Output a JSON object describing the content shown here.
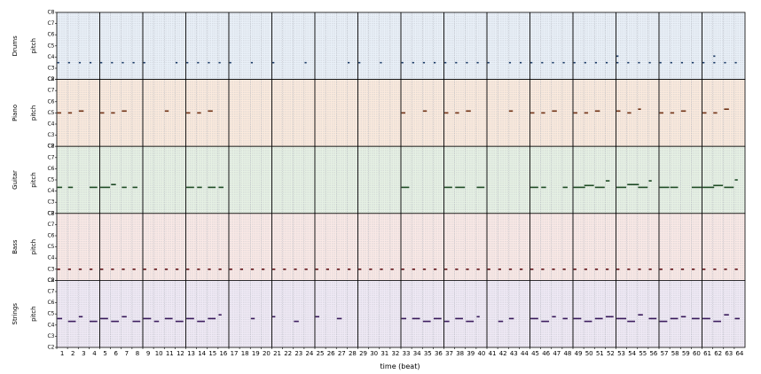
{
  "chart_data": {
    "type": "heatmap",
    "subtype": "multitrack-pianoroll",
    "xlabel": "time (beat)",
    "ylabel": "pitch",
    "x_ticks": [
      "1",
      "2",
      "3",
      "4",
      "5",
      "6",
      "7",
      "8",
      "9",
      "10",
      "11",
      "12",
      "13",
      "14",
      "15",
      "16",
      "17",
      "18",
      "19",
      "20",
      "21",
      "22",
      "23",
      "24",
      "25",
      "26",
      "27",
      "28",
      "29",
      "30",
      "31",
      "32",
      "33",
      "34",
      "35",
      "36",
      "37",
      "38",
      "39",
      "40",
      "41",
      "42",
      "43",
      "44",
      "45",
      "46",
      "47",
      "48",
      "49",
      "50",
      "51",
      "52",
      "53",
      "54",
      "55",
      "56",
      "57",
      "58",
      "59",
      "60",
      "61",
      "62",
      "63",
      "64"
    ],
    "y_ticks": [
      "C2",
      "C3",
      "C4",
      "C5",
      "C6",
      "C7",
      "C8"
    ],
    "y_range_octaves": [
      2,
      8
    ],
    "x_range_beats": [
      1,
      65
    ],
    "beats_per_bar": 4,
    "grid": true,
    "tracks": [
      {
        "name": "Drums",
        "bg": "#e9f0f8",
        "note_color": "#1a3a66",
        "notes": [
          [
            1,
            42,
            0.2
          ],
          [
            2,
            42,
            0.2
          ],
          [
            3,
            42,
            0.2
          ],
          [
            4,
            42,
            0.2
          ],
          [
            5,
            42,
            0.2
          ],
          [
            6,
            42,
            0.2
          ],
          [
            7,
            42,
            0.2
          ],
          [
            8,
            42,
            0.2
          ],
          [
            9,
            42,
            0.2
          ],
          [
            12,
            42,
            0.2
          ],
          [
            13,
            42,
            0.2
          ],
          [
            14,
            42,
            0.2
          ],
          [
            15,
            42,
            0.2
          ],
          [
            16,
            42,
            0.2
          ],
          [
            17,
            42,
            0.2
          ],
          [
            19,
            42,
            0.2
          ],
          [
            21,
            42,
            0.2
          ],
          [
            24,
            42,
            0.2
          ],
          [
            28,
            42,
            0.2
          ],
          [
            29,
            42,
            0.2
          ],
          [
            31,
            42,
            0.2
          ],
          [
            33,
            42,
            0.2
          ],
          [
            34,
            42,
            0.2
          ],
          [
            35,
            42,
            0.2
          ],
          [
            36,
            42,
            0.2
          ],
          [
            37,
            42,
            0.2
          ],
          [
            38,
            42,
            0.2
          ],
          [
            39,
            42,
            0.2
          ],
          [
            40,
            42,
            0.2
          ],
          [
            41,
            42,
            0.2
          ],
          [
            43,
            42,
            0.2
          ],
          [
            44,
            42,
            0.2
          ],
          [
            45,
            42,
            0.2
          ],
          [
            46,
            42,
            0.2
          ],
          [
            47,
            42,
            0.2
          ],
          [
            48,
            42,
            0.2
          ],
          [
            49,
            42,
            0.2
          ],
          [
            50,
            42,
            0.2
          ],
          [
            51,
            42,
            0.2
          ],
          [
            52,
            42,
            0.2
          ],
          [
            53,
            42,
            0.2
          ],
          [
            54,
            42,
            0.2
          ],
          [
            55,
            42,
            0.2
          ],
          [
            56,
            42,
            0.2
          ],
          [
            57,
            42,
            0.2
          ],
          [
            58,
            42,
            0.2
          ],
          [
            59,
            42,
            0.2
          ],
          [
            60,
            42,
            0.2
          ],
          [
            61,
            42,
            0.2
          ],
          [
            62,
            42,
            0.2
          ],
          [
            63,
            42,
            0.2
          ],
          [
            64,
            42,
            0.2
          ],
          [
            53,
            49,
            0.2
          ],
          [
            62,
            49,
            0.2
          ]
        ]
      },
      {
        "name": "Piano",
        "bg": "#fbeadd",
        "note_color": "#6b2e12",
        "notes": [
          [
            1,
            60,
            0.4
          ],
          [
            2,
            60,
            0.4
          ],
          [
            3,
            62,
            0.5
          ],
          [
            5,
            60,
            0.4
          ],
          [
            6,
            60,
            0.4
          ],
          [
            7,
            62,
            0.5
          ],
          [
            11,
            62,
            0.4
          ],
          [
            13,
            60,
            0.4
          ],
          [
            14,
            60,
            0.4
          ],
          [
            15,
            62,
            0.5
          ],
          [
            33,
            60,
            0.4
          ],
          [
            35,
            62,
            0.4
          ],
          [
            37,
            60,
            0.4
          ],
          [
            38,
            60,
            0.4
          ],
          [
            39,
            62,
            0.5
          ],
          [
            43,
            62,
            0.4
          ],
          [
            45,
            60,
            0.4
          ],
          [
            46,
            60,
            0.4
          ],
          [
            47,
            62,
            0.5
          ],
          [
            49,
            60,
            0.4
          ],
          [
            50,
            60,
            0.4
          ],
          [
            51,
            62,
            0.5
          ],
          [
            53,
            62,
            0.4
          ],
          [
            54,
            60,
            0.4
          ],
          [
            55,
            64,
            0.3
          ],
          [
            57,
            60,
            0.4
          ],
          [
            58,
            60,
            0.4
          ],
          [
            59,
            62,
            0.5
          ],
          [
            61,
            60,
            0.4
          ],
          [
            62,
            60,
            0.4
          ],
          [
            63,
            64,
            0.5
          ]
        ]
      },
      {
        "name": "Guitar",
        "bg": "#e6f1e4",
        "note_color": "#1d4a24",
        "notes": [
          [
            1,
            52,
            0.5
          ],
          [
            2,
            52,
            0.5
          ],
          [
            4,
            52,
            0.8
          ],
          [
            5,
            52,
            1.0
          ],
          [
            6,
            55,
            0.5
          ],
          [
            7,
            52,
            0.5
          ],
          [
            8,
            52,
            0.5
          ],
          [
            13,
            52,
            0.8
          ],
          [
            14,
            52,
            0.5
          ],
          [
            15,
            52,
            0.8
          ],
          [
            16,
            52,
            0.5
          ],
          [
            33,
            52,
            0.8
          ],
          [
            37,
            52,
            0.8
          ],
          [
            38,
            52,
            1.0
          ],
          [
            40,
            52,
            0.8
          ],
          [
            45,
            52,
            0.8
          ],
          [
            46,
            52,
            0.5
          ],
          [
            48,
            52,
            0.5
          ],
          [
            49,
            52,
            1.2
          ],
          [
            50,
            54,
            1.0
          ],
          [
            51,
            52,
            1.0
          ],
          [
            52,
            59,
            0.4
          ],
          [
            53,
            52,
            1.0
          ],
          [
            54,
            55,
            1.2
          ],
          [
            55,
            52,
            1.0
          ],
          [
            56,
            59,
            0.3
          ],
          [
            57,
            52,
            1.0
          ],
          [
            58,
            52,
            0.8
          ],
          [
            60,
            52,
            1.0
          ],
          [
            61,
            52,
            1.2
          ],
          [
            62,
            54,
            1.0
          ],
          [
            63,
            52,
            1.0
          ],
          [
            64,
            60,
            0.3
          ]
        ]
      },
      {
        "name": "Bass",
        "bg": "#fae9e6",
        "note_color": "#5c0f14",
        "notes": [
          [
            1,
            36,
            0.3
          ],
          [
            2,
            36,
            0.3
          ],
          [
            3,
            36,
            0.3
          ],
          [
            4,
            36,
            0.3
          ],
          [
            5,
            36,
            0.3
          ],
          [
            6,
            36,
            0.3
          ],
          [
            7,
            36,
            0.3
          ],
          [
            8,
            36,
            0.3
          ],
          [
            9,
            36,
            0.3
          ],
          [
            10,
            36,
            0.3
          ],
          [
            11,
            36,
            0.3
          ],
          [
            12,
            36,
            0.3
          ],
          [
            13,
            36,
            0.3
          ],
          [
            14,
            36,
            0.3
          ],
          [
            15,
            36,
            0.3
          ],
          [
            16,
            36,
            0.3
          ],
          [
            17,
            36,
            0.3
          ],
          [
            18,
            36,
            0.3
          ],
          [
            19,
            36,
            0.3
          ],
          [
            20,
            36,
            0.3
          ],
          [
            21,
            36,
            0.3
          ],
          [
            22,
            36,
            0.3
          ],
          [
            23,
            36,
            0.3
          ],
          [
            24,
            36,
            0.3
          ],
          [
            25,
            36,
            0.3
          ],
          [
            26,
            36,
            0.3
          ],
          [
            27,
            36,
            0.3
          ],
          [
            28,
            36,
            0.3
          ],
          [
            29,
            36,
            0.3
          ],
          [
            30,
            36,
            0.3
          ],
          [
            31,
            36,
            0.3
          ],
          [
            32,
            36,
            0.3
          ],
          [
            33,
            36,
            0.3
          ],
          [
            34,
            36,
            0.3
          ],
          [
            35,
            36,
            0.3
          ],
          [
            36,
            36,
            0.3
          ],
          [
            37,
            36,
            0.3
          ],
          [
            38,
            36,
            0.3
          ],
          [
            39,
            36,
            0.3
          ],
          [
            40,
            36,
            0.3
          ],
          [
            41,
            36,
            0.3
          ],
          [
            42,
            36,
            0.3
          ],
          [
            43,
            36,
            0.3
          ],
          [
            44,
            36,
            0.3
          ],
          [
            45,
            36,
            0.3
          ],
          [
            46,
            36,
            0.3
          ],
          [
            47,
            36,
            0.3
          ],
          [
            48,
            36,
            0.3
          ],
          [
            49,
            36,
            0.3
          ],
          [
            50,
            36,
            0.3
          ],
          [
            51,
            36,
            0.3
          ],
          [
            52,
            36,
            0.3
          ],
          [
            53,
            36,
            0.3
          ],
          [
            54,
            36,
            0.3
          ],
          [
            55,
            36,
            0.3
          ],
          [
            56,
            36,
            0.3
          ],
          [
            57,
            36,
            0.3
          ],
          [
            58,
            36,
            0.3
          ],
          [
            59,
            36,
            0.3
          ],
          [
            60,
            36,
            0.3
          ],
          [
            61,
            36,
            0.3
          ],
          [
            62,
            36,
            0.3
          ],
          [
            63,
            36,
            0.3
          ],
          [
            64,
            36,
            0.3
          ]
        ]
      },
      {
        "name": "Strings",
        "bg": "#efe9f5",
        "note_color": "#3a1a5c",
        "notes": [
          [
            1,
            55,
            0.5
          ],
          [
            2,
            52,
            0.8
          ],
          [
            3,
            57,
            0.4
          ],
          [
            4,
            52,
            0.8
          ],
          [
            5,
            55,
            0.8
          ],
          [
            6,
            52,
            0.8
          ],
          [
            7,
            57,
            0.5
          ],
          [
            8,
            52,
            0.8
          ],
          [
            9,
            55,
            0.8
          ],
          [
            10,
            52,
            0.5
          ],
          [
            11,
            55,
            0.8
          ],
          [
            12,
            52,
            0.8
          ],
          [
            13,
            55,
            0.8
          ],
          [
            14,
            52,
            0.8
          ],
          [
            15,
            55,
            0.8
          ],
          [
            16,
            59,
            0.3
          ],
          [
            19,
            55,
            0.4
          ],
          [
            21,
            57,
            0.3
          ],
          [
            23,
            52,
            0.5
          ],
          [
            25,
            57,
            0.4
          ],
          [
            27,
            55,
            0.5
          ],
          [
            33,
            55,
            0.5
          ],
          [
            34,
            55,
            0.8
          ],
          [
            35,
            52,
            0.8
          ],
          [
            36,
            55,
            0.8
          ],
          [
            37,
            52,
            0.5
          ],
          [
            38,
            55,
            0.8
          ],
          [
            39,
            52,
            0.8
          ],
          [
            40,
            57,
            0.3
          ],
          [
            42,
            52,
            0.5
          ],
          [
            43,
            55,
            0.5
          ],
          [
            45,
            55,
            0.8
          ],
          [
            46,
            52,
            0.8
          ],
          [
            47,
            57,
            0.4
          ],
          [
            48,
            55,
            0.5
          ],
          [
            49,
            55,
            0.8
          ],
          [
            50,
            52,
            0.8
          ],
          [
            51,
            55,
            0.8
          ],
          [
            52,
            57,
            0.8
          ],
          [
            53,
            55,
            1.0
          ],
          [
            54,
            52,
            0.8
          ],
          [
            55,
            59,
            0.5
          ],
          [
            56,
            55,
            0.8
          ],
          [
            57,
            52,
            0.8
          ],
          [
            58,
            55,
            0.8
          ],
          [
            59,
            57,
            0.5
          ],
          [
            60,
            55,
            0.8
          ],
          [
            61,
            55,
            0.8
          ],
          [
            62,
            52,
            0.8
          ],
          [
            63,
            59,
            0.5
          ],
          [
            64,
            55,
            0.5
          ]
        ]
      }
    ]
  }
}
